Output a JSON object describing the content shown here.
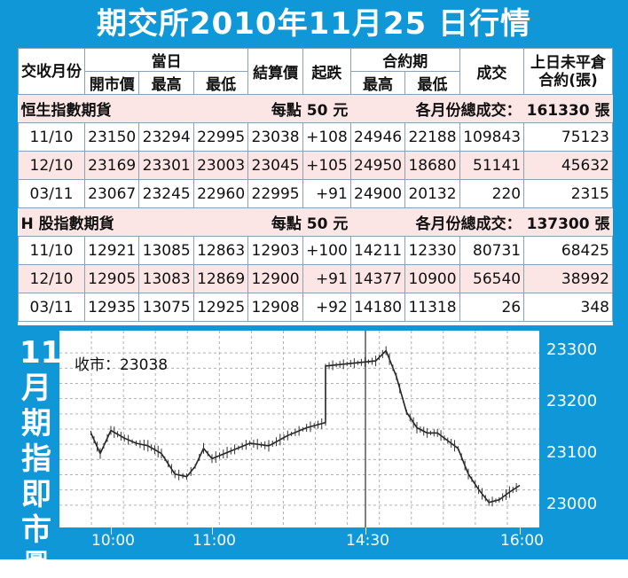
{
  "title": "期交所2010年11月25 日行情",
  "table": {
    "header": {
      "month": "交收月份",
      "day_group": "當日",
      "open": "開市價",
      "high": "最高",
      "low": "最低",
      "settle": "結算價",
      "change": "起跌",
      "contract_group": "合約期",
      "c_high": "最高",
      "c_low": "最低",
      "volume": "成交",
      "oi": "上日未平倉合約(張)"
    },
    "sections": [
      {
        "name": "恒生指數期貨",
        "unit": "每點 50 元",
        "total_label": "各月份總成交：",
        "total": "161330 張",
        "rows": [
          {
            "month": "11/10",
            "open": "23150",
            "high": "23294",
            "low": "22995",
            "settle": "23038",
            "change": "+108",
            "c_high": "24946",
            "c_low": "22188",
            "volume": "109843",
            "oi": "75123"
          },
          {
            "month": "12/10",
            "open": "23169",
            "high": "23301",
            "low": "23003",
            "settle": "23045",
            "change": "+105",
            "c_high": "24950",
            "c_low": "18680",
            "volume": "51141",
            "oi": "45632"
          },
          {
            "month": "03/11",
            "open": "23067",
            "high": "23245",
            "low": "22960",
            "settle": "22995",
            "change": "+91",
            "c_high": "24900",
            "c_low": "20132",
            "volume": "220",
            "oi": "2315"
          }
        ]
      },
      {
        "name": "H 股指數期貨",
        "unit": "每點 50 元",
        "total_label": "各月份總成交：",
        "total": "137300 張",
        "rows": [
          {
            "month": "11/10",
            "open": "12921",
            "high": "13085",
            "low": "12863",
            "settle": "12903",
            "change": "+100",
            "c_high": "14211",
            "c_low": "12330",
            "volume": "80731",
            "oi": "68425"
          },
          {
            "month": "12/10",
            "open": "12905",
            "high": "13083",
            "low": "12869",
            "settle": "12900",
            "change": "+91",
            "c_high": "14377",
            "c_low": "10900",
            "volume": "56540",
            "oi": "38992"
          },
          {
            "month": "03/11",
            "open": "12935",
            "high": "13075",
            "low": "12925",
            "settle": "12908",
            "change": "+92",
            "c_high": "14180",
            "c_low": "11318",
            "volume": "26",
            "oi": "348"
          }
        ]
      }
    ]
  },
  "sidebar": {
    "big": [
      "11",
      "月",
      "期",
      "指",
      "即",
      "市"
    ],
    "small": "圖"
  },
  "chart_data": {
    "type": "line",
    "close_label": "收市：23038",
    "x_ticks": [
      "10:00",
      "11:00",
      "14:30",
      "16:00"
    ],
    "y_ticks": [
      23000,
      23100,
      23200,
      23300
    ],
    "ylim": [
      22970,
      23325
    ],
    "grid": true,
    "series": [
      {
        "x": [
          "09:45",
          "09:52",
          "10:00",
          "10:08",
          "10:15",
          "10:22",
          "10:30",
          "10:38",
          "10:45",
          "10:50",
          "10:55",
          "11:00",
          "11:10",
          "11:20",
          "11:30",
          "11:40",
          "11:50",
          "12:00",
          "14:30",
          "14:36",
          "14:42",
          "14:48",
          "14:54",
          "15:00",
          "15:06",
          "15:12",
          "15:18",
          "15:24",
          "15:30",
          "15:36",
          "15:42",
          "15:48",
          "15:54",
          "16:00"
        ],
        "y": [
          23140,
          23100,
          23145,
          23130,
          23120,
          23115,
          23100,
          23060,
          23055,
          23075,
          23110,
          23090,
          23105,
          23120,
          23115,
          23135,
          23150,
          23160,
          23270,
          23280,
          23300,
          23250,
          23180,
          23150,
          23140,
          23140,
          23125,
          23110,
          23060,
          23030,
          23005,
          23010,
          23025,
          23038
        ]
      }
    ]
  },
  "colors": {
    "frame": "#0f97d8",
    "section_bg": "#fbe5e5",
    "grid": "#b0b0b0"
  }
}
